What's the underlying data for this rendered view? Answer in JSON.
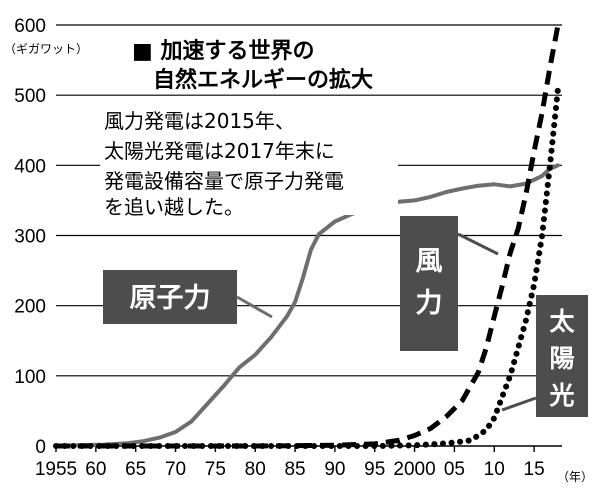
{
  "chart_data": {
    "type": "line",
    "title": "■ 加速する世界の\n自然エネルギーの拡大",
    "ylabel": "（ギガワット）",
    "xlabel": "（年）",
    "xlim": [
      1955,
      2018
    ],
    "ylim": [
      0,
      600
    ],
    "grid": true,
    "y_ticks": [
      0,
      100,
      200,
      300,
      400,
      500,
      600
    ],
    "x_ticks": [
      {
        "year": 1955,
        "label": "1955"
      },
      {
        "year": 1960,
        "label": "60"
      },
      {
        "year": 1965,
        "label": "65"
      },
      {
        "year": 1970,
        "label": "70"
      },
      {
        "year": 1975,
        "label": "75"
      },
      {
        "year": 1980,
        "label": "80"
      },
      {
        "year": 1985,
        "label": "85"
      },
      {
        "year": 1990,
        "label": "90"
      },
      {
        "year": 1995,
        "label": "95"
      },
      {
        "year": 2000,
        "label": "2000"
      },
      {
        "year": 2005,
        "label": "05"
      },
      {
        "year": 2010,
        "label": "10"
      },
      {
        "year": 2015,
        "label": "15"
      }
    ],
    "annotation": "風力発電は2015年、\n太陽光発電は2017年末に\n発電設備容量で原子力発電\nを追い越した。",
    "series": [
      {
        "name": "原子力",
        "style": "solid",
        "color": "#6e6e6e",
        "points": [
          [
            1955,
            0
          ],
          [
            1958,
            1
          ],
          [
            1961,
            2
          ],
          [
            1964,
            4
          ],
          [
            1966,
            7
          ],
          [
            1968,
            12
          ],
          [
            1970,
            20
          ],
          [
            1972,
            35
          ],
          [
            1974,
            60
          ],
          [
            1976,
            85
          ],
          [
            1978,
            112
          ],
          [
            1980,
            130
          ],
          [
            1982,
            155
          ],
          [
            1984,
            185
          ],
          [
            1985,
            205
          ],
          [
            1986,
            240
          ],
          [
            1987,
            280
          ],
          [
            1988,
            302
          ],
          [
            1990,
            320
          ],
          [
            1992,
            330
          ],
          [
            1994,
            338
          ],
          [
            1996,
            345
          ],
          [
            1998,
            348
          ],
          [
            2000,
            350
          ],
          [
            2002,
            355
          ],
          [
            2004,
            362
          ],
          [
            2006,
            367
          ],
          [
            2008,
            371
          ],
          [
            2010,
            373
          ],
          [
            2012,
            370
          ],
          [
            2014,
            374
          ],
          [
            2016,
            385
          ],
          [
            2017,
            395
          ],
          [
            2018,
            400
          ]
        ]
      },
      {
        "name": "風力",
        "style": "dashed",
        "color": "#000000",
        "points": [
          [
            1955,
            0
          ],
          [
            1980,
            0
          ],
          [
            1990,
            1
          ],
          [
            1995,
            3
          ],
          [
            1998,
            8
          ],
          [
            2000,
            15
          ],
          [
            2002,
            25
          ],
          [
            2004,
            42
          ],
          [
            2006,
            65
          ],
          [
            2008,
            105
          ],
          [
            2009,
            140
          ],
          [
            2010,
            185
          ],
          [
            2011,
            228
          ],
          [
            2012,
            275
          ],
          [
            2013,
            310
          ],
          [
            2014,
            360
          ],
          [
            2015,
            420
          ],
          [
            2016,
            475
          ],
          [
            2017,
            540
          ],
          [
            2018,
            600
          ]
        ]
      },
      {
        "name": "太陽光",
        "style": "dotted",
        "color": "#000000",
        "points": [
          [
            1955,
            0
          ],
          [
            1995,
            0
          ],
          [
            2000,
            1
          ],
          [
            2003,
            3
          ],
          [
            2005,
            5
          ],
          [
            2007,
            8
          ],
          [
            2008,
            15
          ],
          [
            2009,
            23
          ],
          [
            2010,
            40
          ],
          [
            2011,
            70
          ],
          [
            2012,
            100
          ],
          [
            2013,
            140
          ],
          [
            2014,
            180
          ],
          [
            2015,
            230
          ],
          [
            2016,
            300
          ],
          [
            2017,
            400
          ],
          [
            2018,
            510
          ]
        ]
      }
    ],
    "series_labels": {
      "nuclear": "原子力",
      "wind": "風力",
      "solar": "太陽光"
    },
    "colors": {
      "label_box": "#4d4d4d",
      "grid": "#000000"
    }
  }
}
